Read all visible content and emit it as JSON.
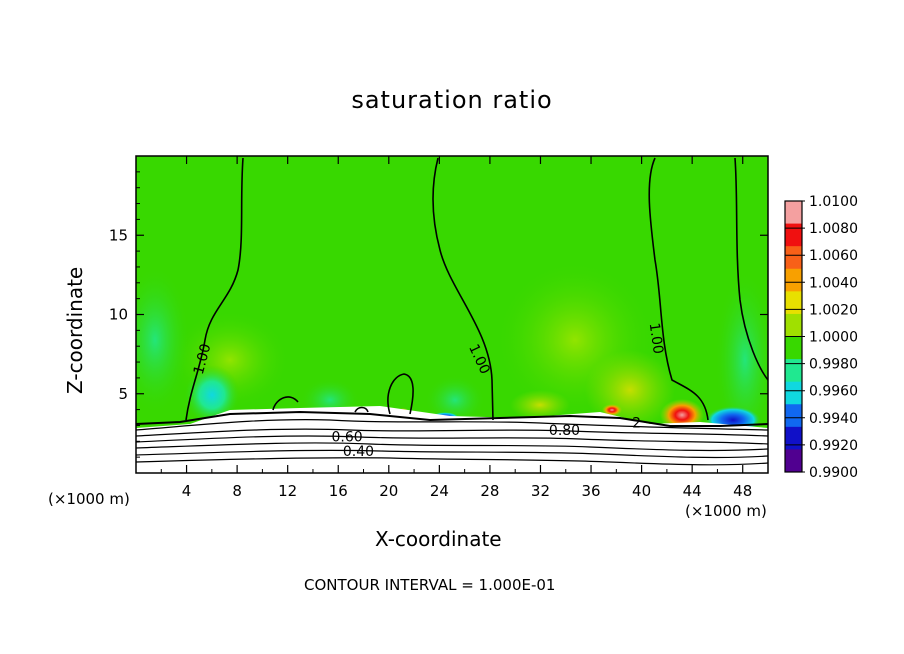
{
  "chart_data": {
    "type": "heatmap",
    "title": "saturation ratio",
    "xlabel": "X-coordinate",
    "ylabel": "Z-coordinate",
    "x_unit": "(×1000 m)",
    "x_ticks": [
      4,
      8,
      12,
      16,
      20,
      24,
      28,
      32,
      36,
      40,
      44,
      48
    ],
    "y_ticks": [
      5,
      10,
      15
    ],
    "xlim": [
      0,
      50
    ],
    "ylim": [
      0,
      20
    ],
    "colorbar": {
      "levels": [
        "1.0100",
        "1.0080",
        "1.0060",
        "1.0040",
        "1.0020",
        "1.0000",
        "0.9980",
        "0.9960",
        "0.9940",
        "0.9920",
        "0.9900"
      ],
      "colors": [
        "#f4a0a0",
        "#f01010",
        "#f86018",
        "#f8a000",
        "#e8e000",
        "#a0e000",
        "#38d800",
        "#20e890",
        "#10d8e0",
        "#1068f0",
        "#1010c8",
        "#500090"
      ]
    },
    "contour_labels": [
      {
        "text": "1.00",
        "x": 5.2,
        "z": 7.2,
        "angle": -75
      },
      {
        "text": "1.00",
        "x": 27.2,
        "z": 7.2,
        "angle": 65
      },
      {
        "text": "1.00",
        "x": 41.2,
        "z": 8.5,
        "angle": 82
      },
      {
        "text": "0.60",
        "x": 16.7,
        "z": 2.3,
        "angle": 0
      },
      {
        "text": "0.40",
        "x": 17.6,
        "z": 1.4,
        "angle": 0
      },
      {
        "text": "0.80",
        "x": 33.9,
        "z": 2.7,
        "angle": 0
      },
      {
        "text": "2",
        "x": 39.6,
        "z": 3.2,
        "angle": 0
      }
    ],
    "footer": "CONTOUR INTERVAL = 1.000E-01"
  }
}
